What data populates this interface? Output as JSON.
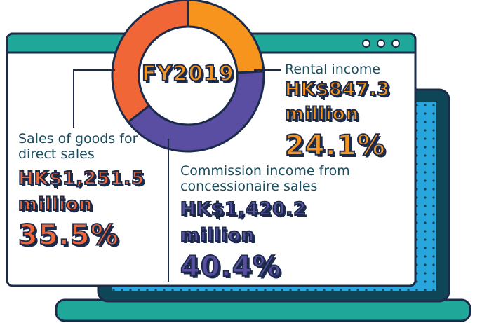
{
  "chart_data": {
    "type": "donut",
    "title": "FY2019",
    "categories": [
      "Rental income",
      "Commission income from concessionaire sales",
      "Sales of goods for direct sales"
    ],
    "values": [
      24.1,
      40.4,
      35.5
    ],
    "value_labels": [
      "24.1%",
      "40.4%",
      "35.5%"
    ],
    "amount_labels": [
      "HK$847.3",
      "HK$1,420.2",
      "HK$1,251.5"
    ],
    "unit": "million",
    "colors": [
      "#f7941d",
      "#5a4ea3",
      "#f06637"
    ]
  }
}
